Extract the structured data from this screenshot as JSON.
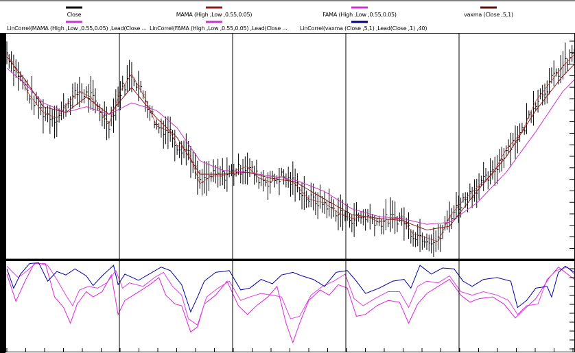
{
  "chart_data": {
    "type": "line",
    "legend": {
      "placement": "top",
      "row1": [
        {
          "label": "Close",
          "color": "#000000"
        },
        {
          "label": "MAMA (High ,Low ,0.55,0.05)",
          "color": "#8b1a1a"
        },
        {
          "label": "FAMA (High ,Low ,0.55,0.05)",
          "color": "#cc33cc"
        },
        {
          "label": "vaxma (Close ,5,1)",
          "color": "#5a1010"
        }
      ],
      "row2": [
        {
          "label": "LinCorrel(MAMA (High ,Low ,0.55,0.05) ,Lead(Close ...",
          "color": "#cc33cc"
        },
        {
          "label": "LinCorrel(FAMA (High ,Low ,0.55,0.05) ,Lead(Close ...",
          "color": "#cc33cc"
        },
        {
          "label": "LinCorrel(vaxma (Close ,5,1) ,Lead(Close ,1) ,40)",
          "color": "#000080"
        }
      ]
    },
    "panels": [
      "price",
      "correlation"
    ],
    "vertical_separators": 4,
    "grid": false,
    "price_series": {
      "close_anchors": [
        [
          0,
          86
        ],
        [
          5,
          75
        ],
        [
          10,
          64
        ],
        [
          16,
          55
        ],
        [
          22,
          52
        ],
        [
          27,
          60
        ],
        [
          32,
          66
        ],
        [
          37,
          63
        ],
        [
          45,
          49
        ],
        [
          50,
          66
        ],
        [
          55,
          75
        ],
        [
          61,
          62
        ],
        [
          66,
          48
        ],
        [
          72,
          45
        ],
        [
          75,
          38
        ],
        [
          80,
          35
        ],
        [
          85,
          18
        ],
        [
          90,
          22
        ],
        [
          95,
          22
        ],
        [
          101,
          25
        ],
        [
          106,
          27
        ],
        [
          111,
          21
        ],
        [
          116,
          19
        ],
        [
          121,
          22
        ],
        [
          127,
          18
        ],
        [
          133,
          10
        ],
        [
          140,
          8
        ],
        [
          146,
          3
        ],
        [
          152,
          0
        ],
        [
          159,
          1
        ],
        [
          164,
          -2
        ],
        [
          169,
          0
        ],
        [
          174,
          0
        ],
        [
          179,
          -8
        ],
        [
          185,
          -10
        ],
        [
          190,
          -12
        ],
        [
          195,
          1
        ],
        [
          200,
          8
        ],
        [
          207,
          16
        ],
        [
          214,
          23
        ],
        [
          220,
          36
        ],
        [
          227,
          45
        ],
        [
          233,
          61
        ],
        [
          239,
          70
        ],
        [
          245,
          79
        ],
        [
          250,
          85
        ]
      ],
      "mama_anchors": [
        [
          0,
          84
        ],
        [
          8,
          72
        ],
        [
          16,
          58
        ],
        [
          26,
          55
        ],
        [
          35,
          63
        ],
        [
          45,
          54
        ],
        [
          55,
          68
        ],
        [
          66,
          52
        ],
        [
          75,
          42
        ],
        [
          85,
          23
        ],
        [
          95,
          23
        ],
        [
          106,
          24
        ],
        [
          116,
          21
        ],
        [
          127,
          19
        ],
        [
          140,
          10
        ],
        [
          152,
          2
        ],
        [
          164,
          0
        ],
        [
          174,
          -1
        ],
        [
          185,
          -6
        ],
        [
          195,
          -4
        ],
        [
          207,
          14
        ],
        [
          220,
          32
        ],
        [
          233,
          56
        ],
        [
          245,
          74
        ],
        [
          250,
          80
        ]
      ],
      "fama_anchors": [
        [
          0,
          78
        ],
        [
          8,
          70
        ],
        [
          16,
          60
        ],
        [
          26,
          55
        ],
        [
          35,
          58
        ],
        [
          45,
          54
        ],
        [
          55,
          60
        ],
        [
          66,
          56
        ],
        [
          75,
          47
        ],
        [
          85,
          30
        ],
        [
          95,
          25
        ],
        [
          106,
          24
        ],
        [
          116,
          22
        ],
        [
          127,
          20
        ],
        [
          140,
          14
        ],
        [
          152,
          5
        ],
        [
          164,
          1
        ],
        [
          174,
          0
        ],
        [
          185,
          -3
        ],
        [
          195,
          -2
        ],
        [
          207,
          8
        ],
        [
          220,
          24
        ],
        [
          233,
          45
        ],
        [
          245,
          66
        ],
        [
          250,
          72
        ]
      ]
    },
    "correlation_series": {
      "navy_anchors": [
        [
          0,
          0.92
        ],
        [
          3,
          0.7
        ],
        [
          6,
          0.86
        ],
        [
          10,
          0.98
        ],
        [
          14,
          0.99
        ],
        [
          18,
          0.78
        ],
        [
          22,
          0.89
        ],
        [
          26,
          0.85
        ],
        [
          30,
          0.92
        ],
        [
          35,
          0.84
        ],
        [
          38,
          0.73
        ],
        [
          42,
          0.84
        ],
        [
          47,
          0.96
        ],
        [
          49,
          0.74
        ],
        [
          52,
          0.86
        ],
        [
          58,
          0.79
        ],
        [
          64,
          0.88
        ],
        [
          68,
          0.94
        ],
        [
          72,
          0.9
        ],
        [
          77,
          0.74
        ],
        [
          81,
          0.43
        ],
        [
          84,
          0.6
        ],
        [
          87,
          0.78
        ],
        [
          92,
          0.88
        ],
        [
          98,
          0.9
        ],
        [
          103,
          0.68
        ],
        [
          107,
          0.7
        ],
        [
          112,
          0.8
        ],
        [
          117,
          0.75
        ],
        [
          121,
          0.85
        ],
        [
          126,
          0.88
        ],
        [
          130,
          0.84
        ],
        [
          135,
          0.8
        ],
        [
          140,
          0.72
        ],
        [
          145,
          0.88
        ],
        [
          150,
          0.9
        ],
        [
          154,
          0.78
        ],
        [
          158,
          0.64
        ],
        [
          164,
          0.7
        ],
        [
          170,
          0.78
        ],
        [
          175,
          0.8
        ],
        [
          178,
          0.7
        ],
        [
          182,
          0.96
        ],
        [
          187,
          0.86
        ],
        [
          192,
          0.93
        ],
        [
          197,
          0.92
        ],
        [
          201,
          0.78
        ],
        [
          205,
          0.72
        ],
        [
          210,
          0.8
        ],
        [
          216,
          0.82
        ],
        [
          222,
          0.78
        ],
        [
          225,
          0.48
        ],
        [
          229,
          0.56
        ],
        [
          233,
          0.7
        ],
        [
          238,
          0.72
        ],
        [
          240,
          0.6
        ],
        [
          243,
          0.88
        ],
        [
          246,
          0.95
        ],
        [
          250,
          0.88
        ]
      ],
      "magenta1_anchors": [
        [
          0,
          0.86
        ],
        [
          4,
          0.55
        ],
        [
          8,
          0.78
        ],
        [
          12,
          0.98
        ],
        [
          17,
          0.98
        ],
        [
          21,
          0.6
        ],
        [
          25,
          0.48
        ],
        [
          28,
          0.3
        ],
        [
          31,
          0.52
        ],
        [
          35,
          0.66
        ],
        [
          38,
          0.6
        ],
        [
          42,
          0.66
        ],
        [
          46,
          0.85
        ],
        [
          49,
          0.4
        ],
        [
          52,
          0.56
        ],
        [
          57,
          0.64
        ],
        [
          63,
          0.74
        ],
        [
          67,
          0.82
        ],
        [
          70,
          0.62
        ],
        [
          74,
          0.52
        ],
        [
          77,
          0.5
        ],
        [
          81,
          0.2
        ],
        [
          84,
          0.26
        ],
        [
          87,
          0.52
        ],
        [
          92,
          0.62
        ],
        [
          97,
          0.78
        ],
        [
          102,
          0.5
        ],
        [
          106,
          0.4
        ],
        [
          110,
          0.5
        ],
        [
          115,
          0.6
        ],
        [
          119,
          0.72
        ],
        [
          123,
          0.3
        ],
        [
          126,
          0.08
        ],
        [
          129,
          0.3
        ],
        [
          133,
          0.56
        ],
        [
          138,
          0.68
        ],
        [
          142,
          0.62
        ],
        [
          146,
          0.74
        ],
        [
          150,
          0.7
        ],
        [
          154,
          0.38
        ],
        [
          158,
          0.4
        ],
        [
          163,
          0.5
        ],
        [
          168,
          0.56
        ],
        [
          173,
          0.54
        ],
        [
          177,
          0.3
        ],
        [
          181,
          0.52
        ],
        [
          185,
          0.64
        ],
        [
          190,
          0.72
        ],
        [
          195,
          0.8
        ],
        [
          200,
          0.62
        ],
        [
          204,
          0.54
        ],
        [
          208,
          0.58
        ],
        [
          214,
          0.6
        ],
        [
          219,
          0.52
        ],
        [
          224,
          0.36
        ],
        [
          228,
          0.46
        ],
        [
          233,
          0.58
        ],
        [
          239,
          0.82
        ],
        [
          243,
          0.94
        ],
        [
          247,
          0.86
        ],
        [
          250,
          0.8
        ]
      ],
      "magenta2_anchors": [
        [
          0,
          0.95
        ],
        [
          5,
          0.82
        ],
        [
          9,
          0.9
        ],
        [
          13,
          0.99
        ],
        [
          18,
          0.96
        ],
        [
          22,
          0.8
        ],
        [
          26,
          0.62
        ],
        [
          29,
          0.5
        ],
        [
          32,
          0.68
        ],
        [
          36,
          0.72
        ],
        [
          40,
          0.7
        ],
        [
          44,
          0.76
        ],
        [
          48,
          0.9
        ],
        [
          51,
          0.7
        ],
        [
          54,
          0.76
        ],
        [
          60,
          0.72
        ],
        [
          65,
          0.82
        ],
        [
          69,
          0.88
        ],
        [
          73,
          0.72
        ],
        [
          77,
          0.62
        ],
        [
          80,
          0.35
        ],
        [
          84,
          0.28
        ],
        [
          88,
          0.6
        ],
        [
          93,
          0.7
        ],
        [
          98,
          0.78
        ],
        [
          103,
          0.56
        ],
        [
          107,
          0.6
        ],
        [
          112,
          0.64
        ],
        [
          117,
          0.62
        ],
        [
          121,
          0.6
        ],
        [
          125,
          0.35
        ],
        [
          129,
          0.38
        ],
        [
          134,
          0.62
        ],
        [
          139,
          0.72
        ],
        [
          144,
          0.78
        ],
        [
          149,
          0.86
        ],
        [
          153,
          0.58
        ],
        [
          157,
          0.5
        ],
        [
          162,
          0.58
        ],
        [
          168,
          0.66
        ],
        [
          173,
          0.66
        ],
        [
          177,
          0.48
        ],
        [
          181,
          0.72
        ],
        [
          185,
          0.78
        ],
        [
          190,
          0.76
        ],
        [
          195,
          0.84
        ],
        [
          200,
          0.66
        ],
        [
          205,
          0.62
        ],
        [
          210,
          0.66
        ],
        [
          216,
          0.62
        ],
        [
          221,
          0.56
        ],
        [
          225,
          0.4
        ],
        [
          229,
          0.5
        ],
        [
          234,
          0.52
        ],
        [
          238,
          0.8
        ],
        [
          242,
          0.9
        ],
        [
          247,
          0.94
        ],
        [
          250,
          0.86
        ]
      ]
    }
  }
}
